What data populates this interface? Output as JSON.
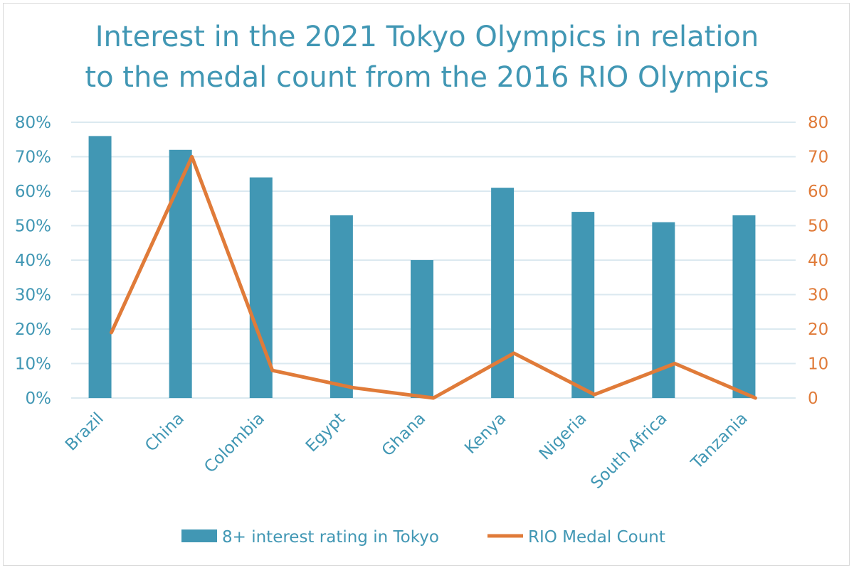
{
  "chart_data": {
    "type": "bar+line",
    "title_lines": [
      "Interest in the 2021 Tokyo Olympics in relation",
      "to the medal count from the 2016 RIO Olympics"
    ],
    "categories": [
      "Brazil",
      "China",
      "Colombia",
      "Egypt",
      "Ghana",
      "Kenya",
      "Nigeria",
      "South Africa",
      "Tanzania"
    ],
    "series": [
      {
        "name": "8+ interest rating in Tokyo",
        "type": "bar",
        "axis": "left",
        "color": "#4197b4",
        "values": [
          76,
          72,
          64,
          53,
          40,
          61,
          54,
          51,
          53
        ]
      },
      {
        "name": "RIO Medal Count",
        "type": "line",
        "axis": "right",
        "color": "#e07b39",
        "values": [
          19,
          70,
          8,
          3,
          0,
          13,
          1,
          10,
          0
        ]
      }
    ],
    "y_left": {
      "range": [
        0,
        80
      ],
      "ticks": [
        "0%",
        "10%",
        "20%",
        "30%",
        "40%",
        "50%",
        "60%",
        "70%",
        "80%"
      ]
    },
    "y_right": {
      "range": [
        0,
        80
      ],
      "ticks": [
        "0",
        "10",
        "20",
        "30",
        "40",
        "50",
        "60",
        "70",
        "80"
      ]
    },
    "grid": true,
    "legend_placement": "bottom"
  }
}
